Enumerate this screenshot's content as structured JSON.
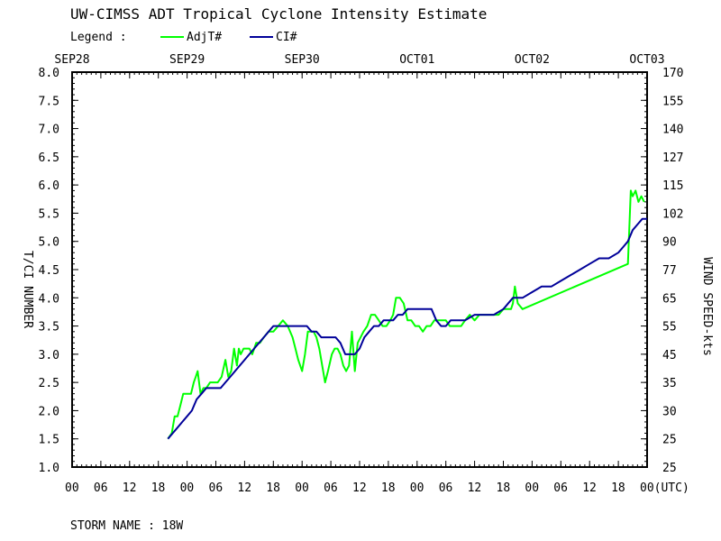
{
  "title": "UW-CIMSS ADT Tropical Cyclone Intensity Estimate",
  "legend": {
    "label": "Legend :",
    "series": [
      {
        "name": "AdjT#",
        "color": "#00ff00"
      },
      {
        "name": "CI#",
        "color": "#000099"
      }
    ]
  },
  "storm_name": "STORM NAME : 18W",
  "chart_data": {
    "type": "line",
    "title": "UW-CIMSS ADT Tropical Cyclone Intensity Estimate",
    "xlabel": "(UTC)",
    "ylabel": "T/CI NUMBER",
    "y2label": "WIND SPEED-kts",
    "xlim": [
      0,
      120
    ],
    "ylim": [
      1.0,
      8.0
    ],
    "x_unit": "hours since SEP28 00 UTC",
    "date_labels": [
      "SEP28",
      "SEP29",
      "SEP30",
      "OCT01",
      "OCT02",
      "OCT03"
    ],
    "x_tick_labels": [
      "00",
      "06",
      "12",
      "18",
      "00",
      "06",
      "12",
      "18",
      "00",
      "06",
      "12",
      "18",
      "00",
      "06",
      "12",
      "18",
      "00",
      "06",
      "12",
      "18",
      "00(UTC)"
    ],
    "y_tick_labels": [
      "1.0",
      "1.5",
      "2.0",
      "2.5",
      "3.0",
      "3.5",
      "4.0",
      "4.5",
      "5.0",
      "5.5",
      "6.0",
      "6.5",
      "7.0",
      "7.5",
      "8.0"
    ],
    "y2_tick_labels": [
      "25",
      "25",
      "30",
      "35",
      "45",
      "55",
      "65",
      "77",
      "90",
      "102",
      "115",
      "127",
      "140",
      "155",
      "170"
    ],
    "series": [
      {
        "name": "AdjT#",
        "color": "#00ff00",
        "x": [
          20.0,
          20.8,
          21.4,
          22.0,
          22.6,
          23.2,
          24.0,
          24.8,
          25.4,
          25.8,
          26.2,
          26.8,
          27.4,
          28.0,
          28.8,
          29.6,
          30.4,
          31.2,
          32.0,
          32.6,
          33.2,
          33.8,
          34.4,
          34.8,
          35.2,
          35.8,
          36.4,
          37.0,
          37.6,
          38.4,
          39.2,
          40.0,
          41.0,
          42.0,
          43.0,
          44.0,
          45.0,
          46.0,
          46.6,
          47.2,
          48.0,
          48.6,
          49.2,
          49.8,
          50.4,
          51.0,
          51.6,
          52.2,
          52.8,
          53.4,
          54.2,
          54.8,
          55.4,
          56.0,
          56.6,
          57.2,
          57.8,
          58.4,
          59.0,
          59.6,
          60.2,
          60.8,
          61.6,
          62.4,
          63.2,
          64.0,
          64.8,
          65.6,
          66.4,
          67.0,
          67.6,
          68.4,
          69.2,
          70.0,
          70.8,
          71.6,
          72.4,
          73.2,
          74.0,
          74.8,
          75.6,
          76.4,
          77.2,
          78.0,
          78.8,
          79.6,
          80.4,
          81.2,
          82.0,
          83.0,
          84.0,
          85.0,
          86.0,
          87.0,
          88.0,
          89.0,
          90.0,
          91.0,
          91.6,
          92.0,
          92.4,
          93.0,
          94.0,
          116.0,
          116.6,
          117.0,
          117.6,
          118.2,
          118.8,
          119.4
        ],
        "y": [
          1.5,
          1.6,
          1.9,
          1.9,
          2.1,
          2.3,
          2.3,
          2.3,
          2.5,
          2.6,
          2.7,
          2.3,
          2.4,
          2.4,
          2.5,
          2.5,
          2.5,
          2.6,
          2.9,
          2.6,
          2.7,
          3.1,
          2.8,
          3.1,
          3.0,
          3.1,
          3.1,
          3.1,
          3.0,
          3.2,
          3.2,
          3.3,
          3.4,
          3.4,
          3.5,
          3.6,
          3.5,
          3.3,
          3.1,
          2.9,
          2.7,
          3.0,
          3.4,
          3.4,
          3.4,
          3.3,
          3.1,
          2.8,
          2.5,
          2.7,
          3.0,
          3.1,
          3.1,
          3.0,
          2.8,
          2.7,
          2.8,
          3.4,
          2.7,
          3.2,
          3.3,
          3.4,
          3.5,
          3.7,
          3.7,
          3.6,
          3.5,
          3.5,
          3.6,
          3.7,
          4.0,
          4.0,
          3.9,
          3.6,
          3.6,
          3.5,
          3.5,
          3.4,
          3.5,
          3.5,
          3.6,
          3.6,
          3.6,
          3.6,
          3.5,
          3.5,
          3.5,
          3.5,
          3.6,
          3.7,
          3.6,
          3.7,
          3.7,
          3.7,
          3.7,
          3.7,
          3.8,
          3.8,
          3.8,
          3.9,
          4.2,
          3.9,
          3.8,
          4.6,
          5.9,
          5.8,
          5.9,
          5.7,
          5.8,
          5.7
        ]
      },
      {
        "name": "CI#",
        "color": "#000099",
        "x": [
          20.0,
          21.0,
          22.0,
          23.0,
          24.0,
          25.0,
          26.0,
          27.0,
          28.0,
          29.0,
          30.0,
          31.0,
          32.0,
          33.0,
          34.0,
          35.0,
          36.0,
          37.0,
          38.0,
          39.0,
          40.0,
          41.0,
          42.0,
          43.0,
          44.0,
          45.0,
          46.0,
          47.0,
          48.0,
          49.0,
          50.0,
          51.0,
          52.0,
          53.0,
          54.0,
          55.0,
          56.0,
          57.0,
          58.0,
          59.0,
          60.0,
          61.0,
          62.0,
          63.0,
          64.0,
          65.0,
          66.0,
          67.0,
          68.0,
          69.0,
          70.0,
          71.0,
          72.0,
          73.0,
          74.0,
          75.0,
          76.0,
          77.0,
          78.0,
          79.0,
          80.0,
          82.0,
          84.0,
          86.0,
          88.0,
          90.0,
          92.0,
          94.0,
          96.0,
          98.0,
          100.0,
          102.0,
          104.0,
          106.0,
          108.0,
          110.0,
          112.0,
          114.0,
          115.0,
          116.0,
          117.0,
          118.0,
          119.0,
          120.0
        ],
        "y": [
          1.5,
          1.6,
          1.7,
          1.8,
          1.9,
          2.0,
          2.2,
          2.3,
          2.4,
          2.4,
          2.4,
          2.4,
          2.5,
          2.6,
          2.7,
          2.8,
          2.9,
          3.0,
          3.1,
          3.2,
          3.3,
          3.4,
          3.5,
          3.5,
          3.5,
          3.5,
          3.5,
          3.5,
          3.5,
          3.5,
          3.4,
          3.4,
          3.3,
          3.3,
          3.3,
          3.3,
          3.2,
          3.0,
          3.0,
          3.0,
          3.1,
          3.3,
          3.4,
          3.5,
          3.5,
          3.6,
          3.6,
          3.6,
          3.7,
          3.7,
          3.8,
          3.8,
          3.8,
          3.8,
          3.8,
          3.8,
          3.6,
          3.5,
          3.5,
          3.6,
          3.6,
          3.6,
          3.7,
          3.7,
          3.7,
          3.8,
          4.0,
          4.0,
          4.1,
          4.2,
          4.2,
          4.3,
          4.4,
          4.5,
          4.6,
          4.7,
          4.7,
          4.8,
          4.9,
          5.0,
          5.2,
          5.3,
          5.4,
          5.4
        ]
      }
    ]
  }
}
